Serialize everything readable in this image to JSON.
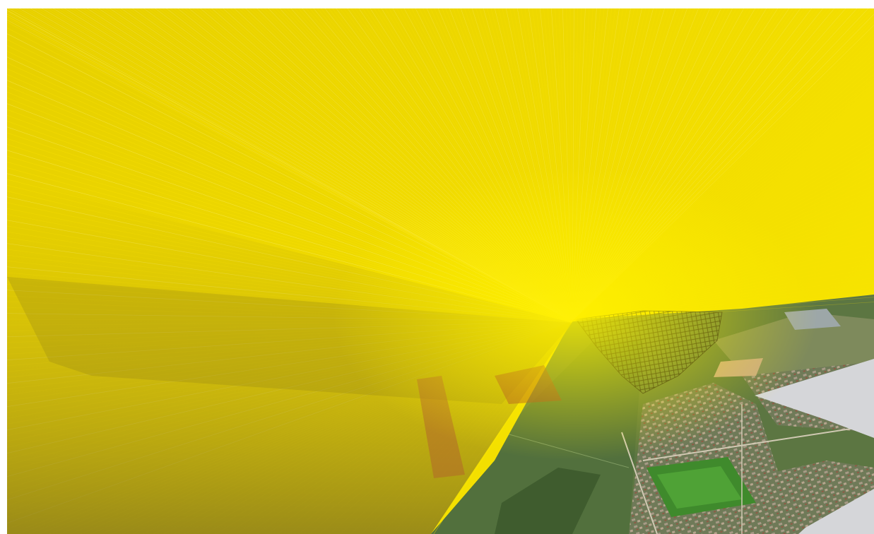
{
  "scene": {
    "kind": "3d-map-view",
    "description_visible_text": [],
    "colors": {
      "sky_background": "#e9d400",
      "ray_yellow": "#ffe600",
      "ray_faint": "#fff27a",
      "overlay_olive": "#8c7d14",
      "terrain_green": "#5f7a45",
      "terrain_dark": "#3f5a30",
      "field_bright": "#4f8a35",
      "urban": "#8d8b7c",
      "road": "#c9c5b5",
      "gray_panel": "#d4d5d8",
      "mesh_dark": "#1a1a1a",
      "zone_red": "#a03a28",
      "zone_orange": "#b2672a"
    },
    "layers": [
      {
        "name": "viewshed-rays",
        "color_key": "ray_yellow"
      },
      {
        "name": "terrain-imagery",
        "color_key": "terrain_green"
      },
      {
        "name": "grid-mesh",
        "color_key": "mesh_dark"
      },
      {
        "name": "red-zone",
        "color_key": "zone_red"
      },
      {
        "name": "orange-strip",
        "color_key": "zone_orange"
      },
      {
        "name": "gray-panel",
        "color_key": "gray_panel"
      }
    ]
  }
}
